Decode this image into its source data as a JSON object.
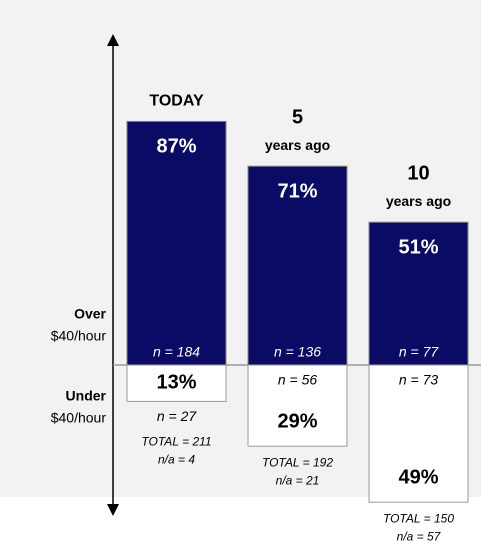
{
  "chart_data": {
    "type": "diverging_bar",
    "categories": [
      [
        "TODAY"
      ],
      [
        "5",
        "years ago"
      ],
      [
        "10",
        "years ago"
      ]
    ],
    "series": [
      {
        "name": "Over",
        "color": "#0b0b66",
        "values": [
          87,
          71,
          51
        ],
        "value_labels": [
          "87%",
          "71%",
          "51%"
        ],
        "n_labels": [
          "n = 184",
          "n = 136",
          "n = 77"
        ]
      },
      {
        "name": "Under",
        "color": "#ffffff",
        "values": [
          13,
          29,
          49
        ],
        "value_labels": [
          "13%",
          "29%",
          "49%"
        ],
        "n_labels": [
          "n = 27",
          "n = 56",
          "n = 73"
        ]
      }
    ],
    "totals": [
      [
        "TOTAL = 211",
        "n/a = 4"
      ],
      [
        "TOTAL = 192",
        "n/a = 21"
      ],
      [
        "TOTAL = 150",
        "n/a = 57"
      ]
    ],
    "axis_labels": {
      "over": [
        "Over",
        "$40/hour"
      ],
      "under": [
        "Under",
        "$40/hour"
      ]
    }
  }
}
